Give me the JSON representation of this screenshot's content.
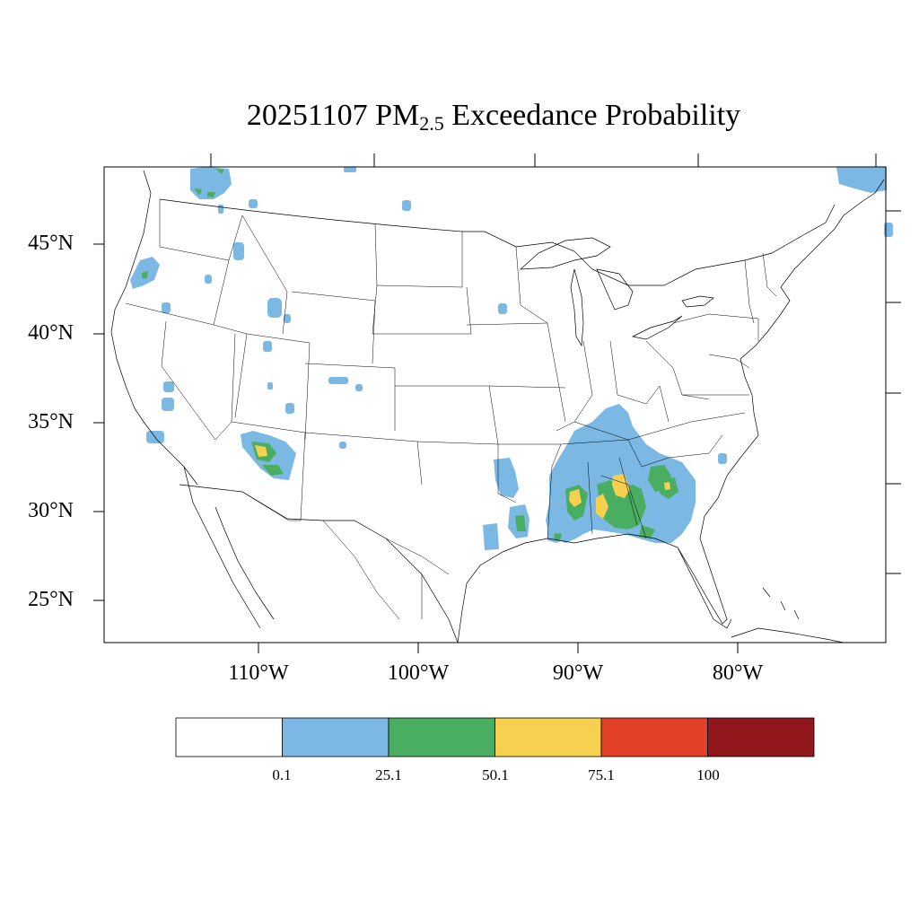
{
  "title": {
    "main": "20251107 PM",
    "sub": "2.5",
    "rest": " Exceedance Probability"
  },
  "lat_labels": [
    "45°N",
    "40°N",
    "35°N",
    "30°N",
    "25°N"
  ],
  "lon_labels": [
    "110°W",
    "100°W",
    "90°W",
    "80°W"
  ],
  "colorbar": {
    "colors": [
      "#ffffff",
      "#7cb8e4",
      "#4aae62",
      "#f8d050",
      "#e34028",
      "#92171c"
    ],
    "labels": [
      "0.1",
      "25.1",
      "50.1",
      "75.1",
      "100"
    ]
  }
}
